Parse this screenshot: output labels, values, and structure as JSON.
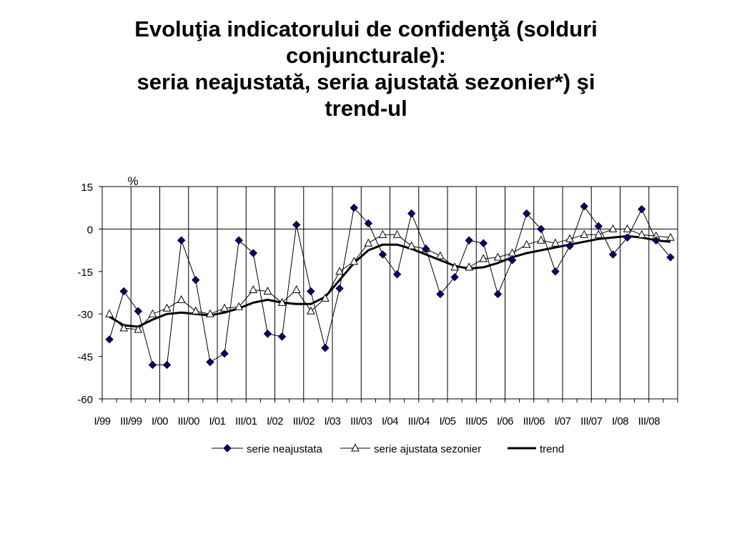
{
  "title_lines": [
    "Evoluţia  indicatorului  de  confidenţă (solduri",
    "conjuncturale):",
    "seria neajustată, seria ajustată sezonier*) şi",
    "trend-ul"
  ],
  "chart_data": {
    "type": "line",
    "unit_label": "%",
    "ylim": [
      -60,
      15
    ],
    "yticks": [
      15,
      0,
      -15,
      -30,
      -45,
      -60
    ],
    "grid": "vertical lines at semester boundaries, horizontal line at 0",
    "legend_position": "bottom-center",
    "x_tick_labels": [
      "I/99",
      "III/99",
      "I/00",
      "III/00",
      "I/01",
      "III/01",
      "I/02",
      "III/02",
      "I/03",
      "III/03",
      "I/04",
      "III/04",
      "I/05",
      "III/05",
      "I/06",
      "III/06",
      "I/07",
      "III/07",
      "I/08",
      "III/08"
    ],
    "series": [
      {
        "name": "serie neajustata",
        "marker": "diamond",
        "color": "#000080",
        "values": [
          -39,
          -22,
          -29,
          -48,
          -48,
          -4,
          -18,
          -47,
          -44,
          -4,
          -8.5,
          -37,
          -38,
          1.5,
          -22,
          -42,
          -21,
          7.5,
          2,
          -9,
          -16,
          5.5,
          -7,
          -23,
          -17,
          -4,
          -5,
          -23,
          -11,
          5.5,
          0,
          -15,
          -6,
          8,
          1,
          -9,
          -3,
          7,
          -4,
          -10
        ]
      },
      {
        "name": "serie ajustata sezonier",
        "marker": "triangle",
        "color": "#ffffff",
        "values": [
          -30,
          -35,
          -35.5,
          -30,
          -28,
          -25,
          -29,
          -30,
          -28,
          -27.5,
          -21.5,
          -22,
          -26,
          -21.5,
          -29,
          -24.5,
          -15,
          -11.5,
          -5,
          -2,
          -2,
          -6,
          -7,
          -9.5,
          -13.5,
          -13.5,
          -10.5,
          -10,
          -8.5,
          -5.5,
          -4,
          -5,
          -3.5,
          -2,
          -2,
          0,
          0,
          -2,
          -2.5,
          -3
        ]
      },
      {
        "name": "trend",
        "marker": "none",
        "color": "#000000",
        "values": [
          -31,
          -34,
          -34.5,
          -32,
          -30,
          -29.5,
          -30,
          -30.5,
          -29.5,
          -28,
          -26,
          -25,
          -26,
          -26.5,
          -26.5,
          -24,
          -18,
          -12,
          -7.5,
          -5.5,
          -5.5,
          -7,
          -9,
          -11,
          -13,
          -14,
          -13.5,
          -12,
          -10,
          -8.5,
          -7.5,
          -6.5,
          -5.5,
          -4.5,
          -3.5,
          -3,
          -2.5,
          -3,
          -4,
          -4.5
        ]
      }
    ]
  }
}
